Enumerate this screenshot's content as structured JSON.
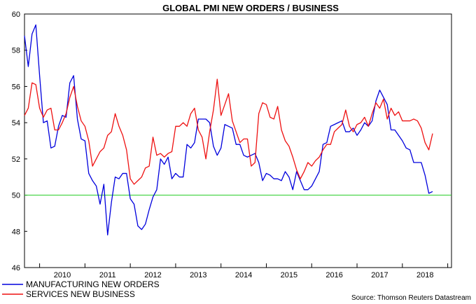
{
  "chart_data": {
    "type": "line",
    "title": "GLOBAL PMI NEW ORDERS / BUSINESS",
    "source": "Source: Thomson Reuters Datastream",
    "x_start": "2009-09",
    "x_end": "2019-02",
    "x_tick_labels": [
      "2010",
      "2011",
      "2012",
      "2013",
      "2014",
      "2015",
      "2016",
      "2017",
      "2018"
    ],
    "ylim": [
      46,
      60
    ],
    "y_ticks": [
      "46",
      "48",
      "50",
      "52",
      "54",
      "56",
      "58",
      "60"
    ],
    "reference_line": {
      "value": 50,
      "color": "#22cc22"
    },
    "legend_placement": "bottom-left",
    "series": [
      {
        "name": "MANUFACTURING NEW ORDERS",
        "color": "#0000dd",
        "start": "2009-09",
        "values": [
          58.8,
          57.1,
          58.9,
          59.4,
          56.6,
          54.0,
          54.1,
          52.6,
          52.7,
          53.8,
          54.4,
          54.3,
          56.2,
          56.6,
          54.2,
          53.1,
          53.0,
          51.2,
          50.8,
          50.5,
          49.5,
          50.6,
          47.8,
          49.6,
          51.0,
          50.9,
          51.2,
          51.2,
          49.8,
          49.5,
          48.3,
          48.1,
          48.4,
          49.2,
          49.9,
          50.3,
          52.0,
          51.7,
          52.1,
          50.9,
          51.2,
          51.0,
          51.0,
          52.8,
          52.6,
          52.9,
          54.2,
          54.2,
          54.2,
          54.0,
          52.7,
          52.2,
          52.6,
          53.9,
          53.8,
          53.7,
          52.8,
          52.8,
          52.2,
          52.1,
          52.2,
          52.3,
          51.8,
          50.8,
          51.2,
          51.1,
          50.9,
          50.9,
          50.8,
          51.3,
          51.0,
          50.3,
          51.3,
          50.8,
          50.3,
          50.3,
          50.5,
          50.9,
          51.3,
          52.8,
          52.9,
          53.8,
          53.9,
          54.0,
          54.1,
          53.5,
          53.5,
          53.7,
          53.3,
          53.6,
          54.0,
          53.8,
          54.1,
          55.2,
          55.8,
          55.4,
          55.0,
          53.6,
          53.6,
          53.3,
          53.0,
          52.6,
          52.5,
          51.8,
          51.8,
          51.8,
          51.1,
          50.1,
          50.2
        ]
      },
      {
        "name": "SERVICES NEW BUSINESS",
        "color": "#ee1111",
        "start": "2009-09",
        "values": [
          54.4,
          54.8,
          56.2,
          56.1,
          54.8,
          54.3,
          54.7,
          54.8,
          53.6,
          53.6,
          54.0,
          54.5,
          55.4,
          56.0,
          54.9,
          54.1,
          53.8,
          53.0,
          51.6,
          52.0,
          52.4,
          52.6,
          53.3,
          53.5,
          54.5,
          53.8,
          53.3,
          52.5,
          50.9,
          50.6,
          50.8,
          51.0,
          51.5,
          51.6,
          53.2,
          52.2,
          52.3,
          52.1,
          52.3,
          52.4,
          53.8,
          53.8,
          54.0,
          53.8,
          54.5,
          54.8,
          53.6,
          53.2,
          52.0,
          53.5,
          54.7,
          56.4,
          54.4,
          55.0,
          55.6,
          54.1,
          53.5,
          52.9,
          53.1,
          53.1,
          51.6,
          51.8,
          54.5,
          55.1,
          55.0,
          54.3,
          54.2,
          54.9,
          53.6,
          53.0,
          52.7,
          52.1,
          51.4,
          50.9,
          51.3,
          51.8,
          51.6,
          51.9,
          52.1,
          52.5,
          52.8,
          52.8,
          53.5,
          53.7,
          53.9,
          54.7,
          53.8,
          53.5,
          53.9,
          54.0,
          54.3,
          53.8,
          54.5,
          55.1,
          54.8,
          55.3,
          54.2,
          54.8,
          54.4,
          54.6,
          54.1,
          54.1,
          54.1,
          54.2,
          54.1,
          53.7,
          52.9,
          52.5,
          53.4
        ]
      }
    ]
  }
}
